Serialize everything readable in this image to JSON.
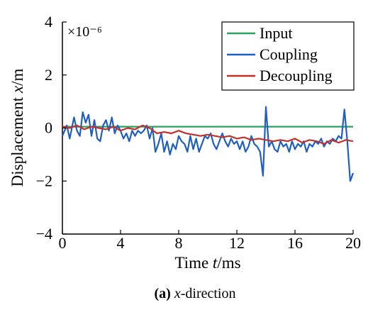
{
  "chart_data": {
    "type": "line",
    "xlabel_prefix": "Time ",
    "xlabel_var": "t",
    "xlabel_unit": "/ms",
    "ylabel_prefix": "Displacement ",
    "ylabel_var": "x",
    "ylabel_unit": "/m",
    "scale_note": "×10⁻⁶",
    "xlim": [
      0,
      20
    ],
    "ylim": [
      -4,
      4
    ],
    "x_ticks": [
      "0",
      "4",
      "8",
      "12",
      "16",
      "20"
    ],
    "x_tick_values": [
      0,
      4,
      8,
      12,
      16,
      20
    ],
    "y_ticks": [
      "4",
      "2",
      "0",
      "−2",
      "−4"
    ],
    "y_tick_values": [
      4,
      2,
      0,
      -2,
      -4
    ],
    "legend_position": "top-right",
    "series": [
      {
        "name": "Input",
        "color": "#2ca25f",
        "x": [
          0,
          20
        ],
        "y": [
          0.05,
          0.05
        ]
      },
      {
        "name": "Coupling",
        "color": "#1f5fbf",
        "x": [
          0,
          0.3,
          0.5,
          0.8,
          1.0,
          1.2,
          1.4,
          1.6,
          1.8,
          2.0,
          2.2,
          2.4,
          2.6,
          2.8,
          3.0,
          3.2,
          3.4,
          3.6,
          3.8,
          4.0,
          4.2,
          4.4,
          4.6,
          4.8,
          5.0,
          5.2,
          5.4,
          5.6,
          5.8,
          6.0,
          6.2,
          6.4,
          6.6,
          6.8,
          7.0,
          7.2,
          7.4,
          7.6,
          7.8,
          8.0,
          8.2,
          8.4,
          8.6,
          8.8,
          9.0,
          9.2,
          9.4,
          9.6,
          9.8,
          10.0,
          10.2,
          10.4,
          10.6,
          10.8,
          11.0,
          11.2,
          11.4,
          11.6,
          11.8,
          12.0,
          12.2,
          12.4,
          12.6,
          12.8,
          13.0,
          13.2,
          13.4,
          13.6,
          13.8,
          14.0,
          14.2,
          14.4,
          14.6,
          14.8,
          15.0,
          15.2,
          15.4,
          15.6,
          15.8,
          16.0,
          16.2,
          16.4,
          16.6,
          16.8,
          17.0,
          17.2,
          17.4,
          17.6,
          17.8,
          18.0,
          18.2,
          18.4,
          18.6,
          18.8,
          19.0,
          19.2,
          19.4,
          19.6,
          19.8,
          20.0
        ],
        "y": [
          -0.3,
          0.1,
          -0.4,
          0.4,
          -0.1,
          -0.3,
          0.6,
          0.2,
          0.5,
          -0.3,
          0.3,
          -0.4,
          -0.5,
          0.1,
          0.3,
          -0.1,
          0.4,
          -0.2,
          0.1,
          -0.1,
          -0.4,
          -0.2,
          -0.5,
          -0.1,
          -0.3,
          -0.1,
          -0.2,
          -0.1,
          0.1,
          -0.4,
          0.0,
          -0.9,
          -0.6,
          -0.2,
          -0.9,
          -0.5,
          -1.0,
          -0.6,
          -0.8,
          -0.3,
          -0.5,
          -0.6,
          -0.9,
          -0.3,
          -0.8,
          -0.4,
          -0.9,
          -0.6,
          -0.3,
          -0.4,
          -0.2,
          -0.6,
          -0.8,
          -0.5,
          -0.2,
          -0.5,
          -0.7,
          -0.4,
          -0.6,
          -0.5,
          -0.8,
          -0.5,
          -0.9,
          -0.7,
          -0.3,
          -0.6,
          -0.7,
          -0.9,
          -1.8,
          0.8,
          -0.7,
          -0.5,
          -0.8,
          -0.9,
          -0.5,
          -0.7,
          -0.6,
          -0.9,
          -0.5,
          -0.8,
          -0.6,
          -0.7,
          -0.5,
          -0.9,
          -0.6,
          -0.7,
          -0.5,
          -0.6,
          -0.4,
          -0.7,
          -0.5,
          -0.6,
          -0.4,
          -0.5,
          -0.3,
          -0.4,
          0.7,
          -0.5,
          -2.0,
          -1.7
        ]
      },
      {
        "name": "Decoupling",
        "color": "#c0312b",
        "x": [
          0,
          0.5,
          1.0,
          1.5,
          2.0,
          2.5,
          3.0,
          3.5,
          4.0,
          4.5,
          5.0,
          5.5,
          6.0,
          6.5,
          7.0,
          7.5,
          8.0,
          8.5,
          9.0,
          9.5,
          10.0,
          10.5,
          11.0,
          11.5,
          12.0,
          12.5,
          13.0,
          13.5,
          14.0,
          14.5,
          15.0,
          15.5,
          16.0,
          16.5,
          17.0,
          17.5,
          18.0,
          18.5,
          19.0,
          19.5,
          20.0
        ],
        "y": [
          0.05,
          0.0,
          0.1,
          -0.05,
          0.05,
          0.0,
          -0.05,
          0.05,
          -0.1,
          0.0,
          -0.05,
          0.1,
          0.0,
          -0.2,
          -0.15,
          -0.2,
          -0.1,
          -0.2,
          -0.25,
          -0.3,
          -0.25,
          -0.3,
          -0.35,
          -0.3,
          -0.4,
          -0.35,
          -0.45,
          -0.4,
          -0.45,
          -0.5,
          -0.45,
          -0.5,
          -0.4,
          -0.55,
          -0.45,
          -0.5,
          -0.6,
          -0.45,
          -0.55,
          -0.45,
          -0.5
        ]
      }
    ]
  },
  "caption": {
    "label": "(a)",
    "var": "x",
    "text": "-direction"
  }
}
